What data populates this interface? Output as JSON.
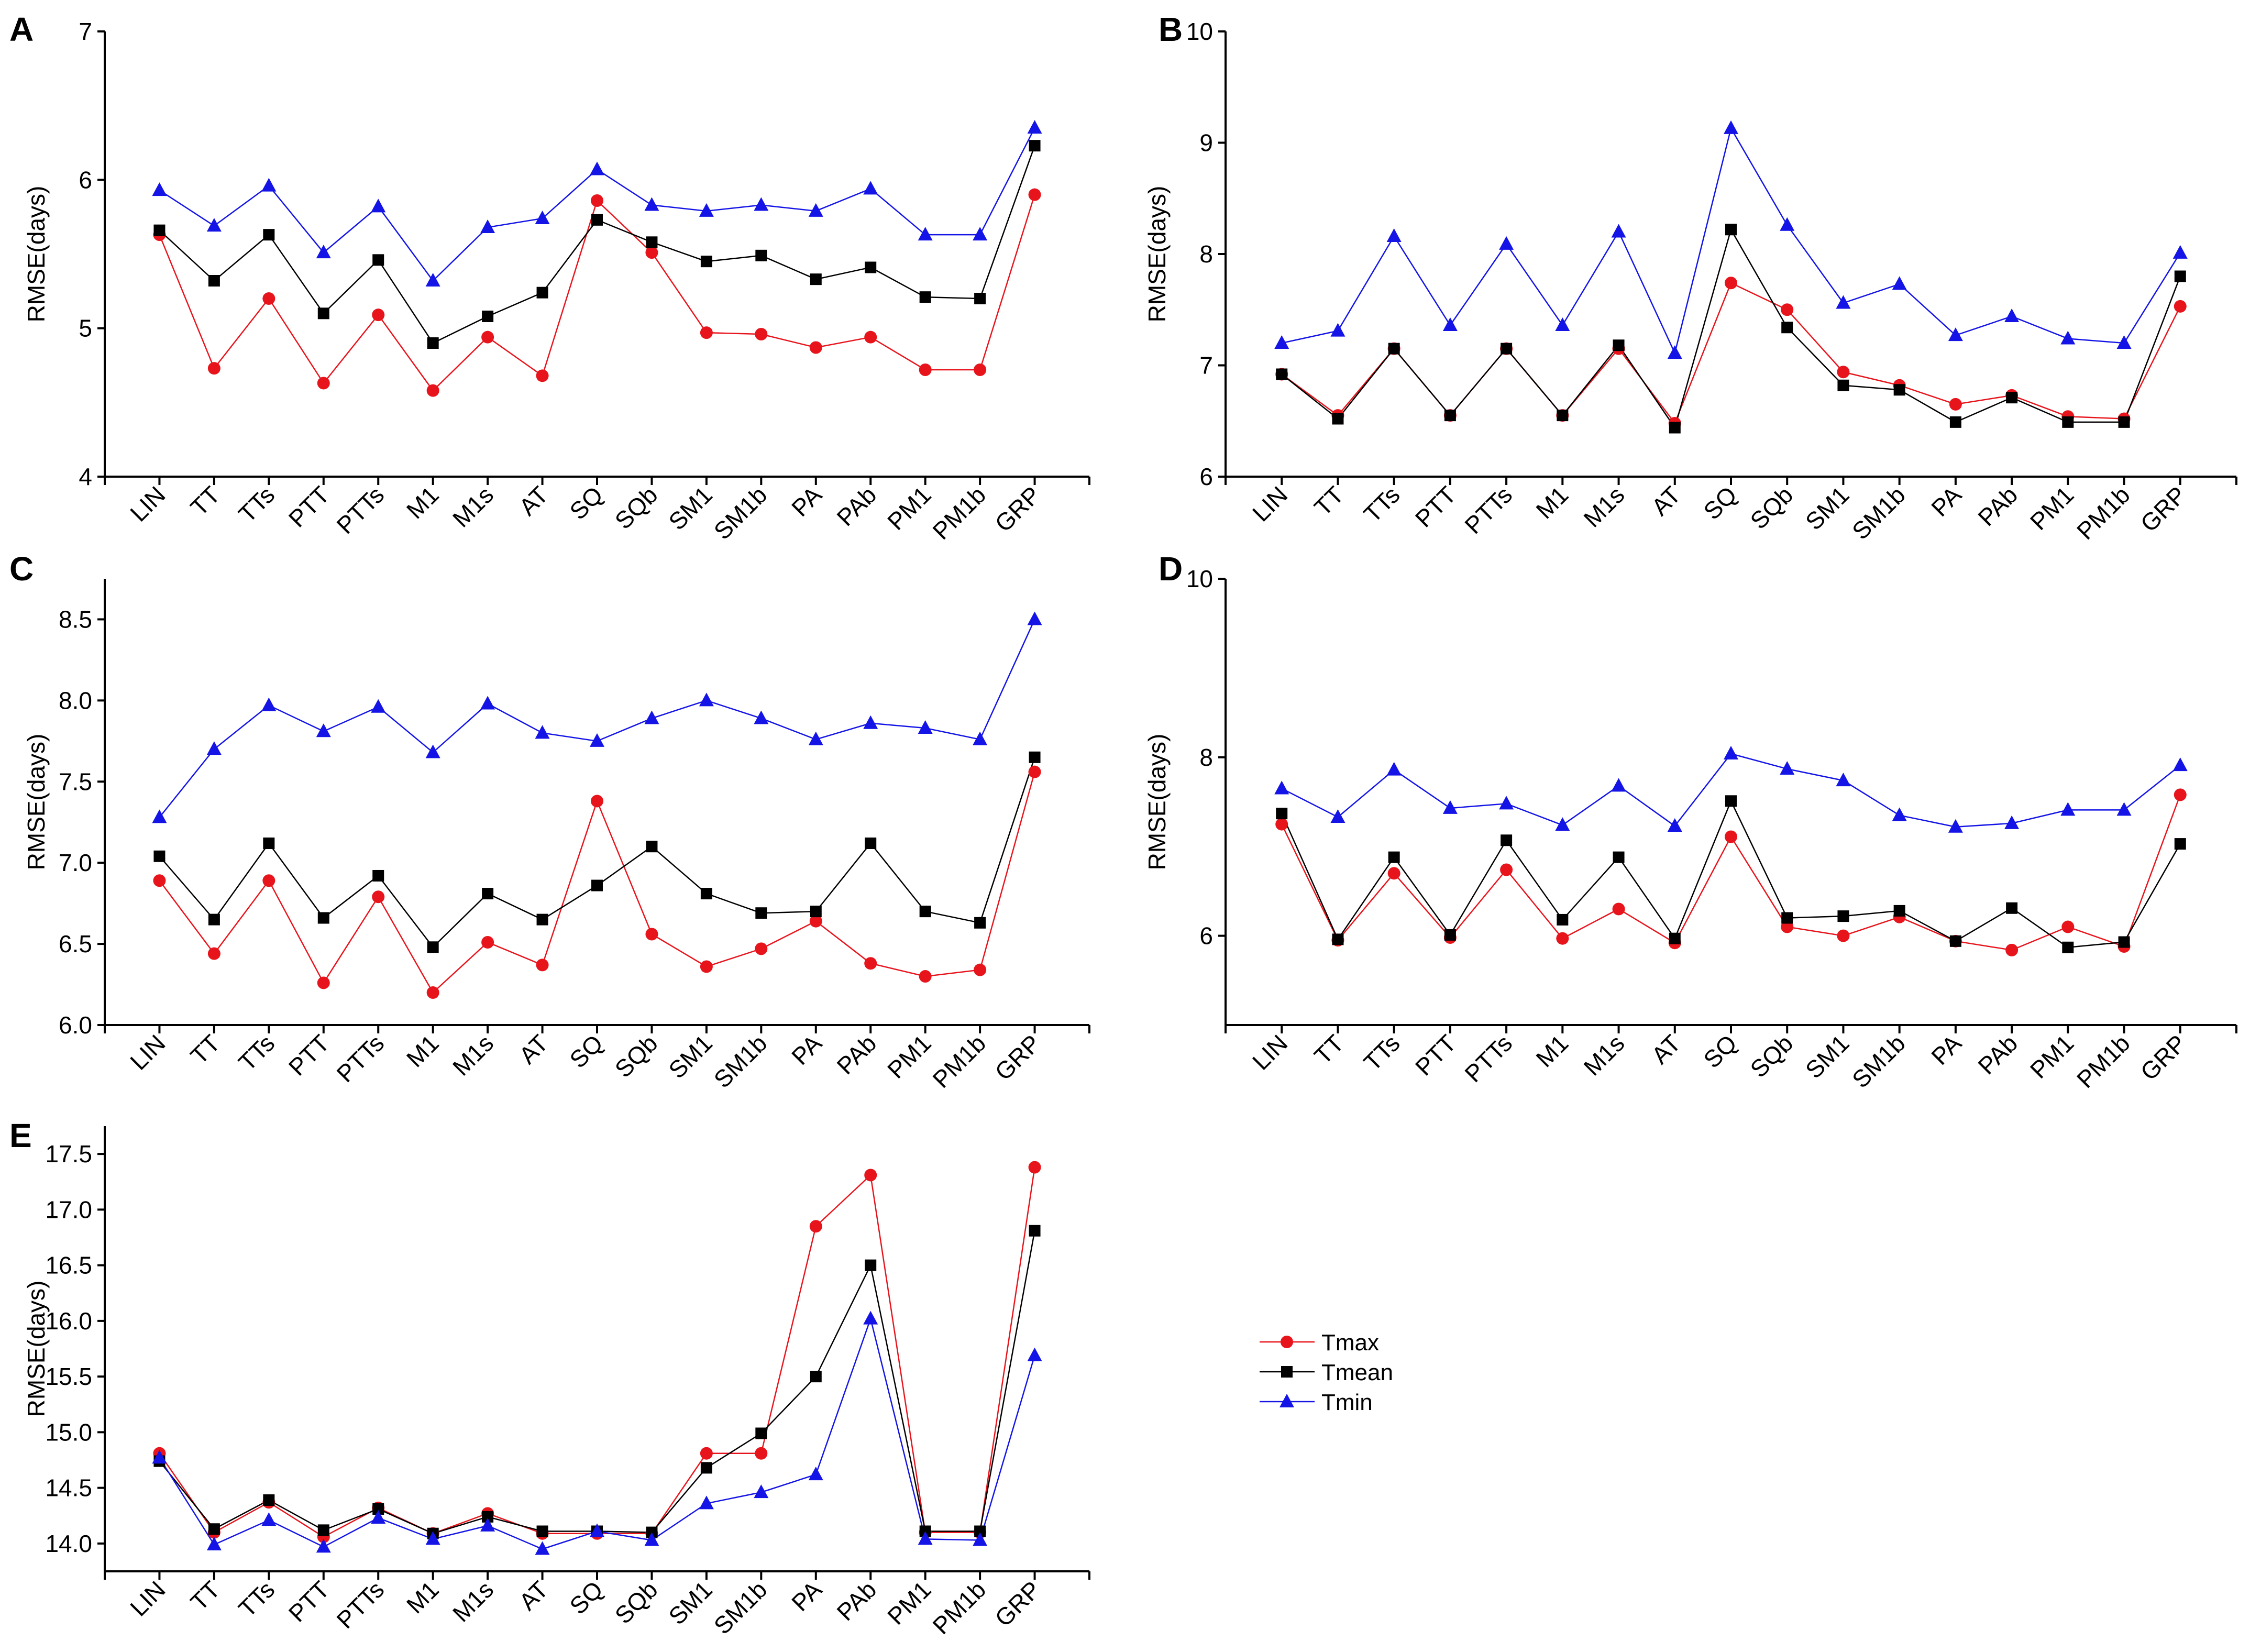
{
  "colors": {
    "tmax": "#e8141c",
    "tmean": "#000000",
    "tmin": "#1414e6",
    "axis": "#000000"
  },
  "legend": {
    "entries": [
      {
        "name": "Tmax",
        "marker": "circle",
        "color": "#e8141c"
      },
      {
        "name": "Tmean",
        "marker": "square",
        "color": "#000000"
      },
      {
        "name": "Tmin",
        "marker": "triangle",
        "color": "#1414e6"
      }
    ]
  },
  "chart_data": [
    {
      "panel": "A",
      "type": "line",
      "ylabel": "RMSE(days)",
      "ylim": [
        4,
        7
      ],
      "yticks": [
        "4",
        "5",
        "6",
        "7"
      ],
      "categories": [
        "LIN",
        "TT",
        "TTs",
        "PTT",
        "PTTs",
        "M1",
        "M1s",
        "AT",
        "SQ",
        "SQb",
        "SM1",
        "SM1b",
        "PA",
        "PAb",
        "PM1",
        "PM1b",
        "GRP"
      ],
      "series": [
        {
          "name": "Tmax",
          "values": [
            5.63,
            4.73,
            5.2,
            4.63,
            5.09,
            4.58,
            4.94,
            4.68,
            5.86,
            5.51,
            4.97,
            4.96,
            4.87,
            4.94,
            4.72,
            4.72,
            5.9
          ]
        },
        {
          "name": "Tmean",
          "values": [
            5.66,
            5.32,
            5.63,
            5.1,
            5.46,
            4.9,
            5.08,
            5.24,
            5.73,
            5.58,
            5.45,
            5.49,
            5.33,
            5.41,
            5.21,
            5.2,
            6.23
          ]
        },
        {
          "name": "Tmin",
          "values": [
            5.93,
            5.69,
            5.96,
            5.51,
            5.82,
            5.32,
            5.68,
            5.74,
            6.07,
            5.83,
            5.79,
            5.83,
            5.79,
            5.94,
            5.63,
            5.63,
            6.35
          ]
        }
      ]
    },
    {
      "panel": "B",
      "type": "line",
      "ylabel": "RMSE(days)",
      "ylim": [
        6,
        10
      ],
      "yticks": [
        "6",
        "7",
        "8",
        "9",
        "10"
      ],
      "categories": [
        "LIN",
        "TT",
        "TTs",
        "PTT",
        "PTTs",
        "M1",
        "M1s",
        "AT",
        "SQ",
        "SQb",
        "SM1",
        "SM1b",
        "PA",
        "PAb",
        "PM1",
        "PM1b",
        "GRP"
      ],
      "series": [
        {
          "name": "Tmax",
          "values": [
            6.92,
            6.55,
            7.15,
            6.55,
            7.15,
            6.55,
            7.15,
            6.48,
            7.74,
            7.5,
            6.94,
            6.82,
            6.65,
            6.73,
            6.54,
            6.52,
            7.53
          ]
        },
        {
          "name": "Tmean",
          "values": [
            6.92,
            6.52,
            7.15,
            6.55,
            7.15,
            6.55,
            7.18,
            6.44,
            8.22,
            7.34,
            6.82,
            6.78,
            6.49,
            6.71,
            6.49,
            6.49,
            7.8
          ]
        },
        {
          "name": "Tmin",
          "values": [
            7.2,
            7.31,
            8.16,
            7.36,
            8.09,
            7.36,
            8.2,
            7.11,
            9.13,
            8.26,
            7.56,
            7.73,
            7.27,
            7.44,
            7.24,
            7.2,
            8.01
          ]
        }
      ]
    },
    {
      "panel": "C",
      "type": "line",
      "ylabel": "RMSE(days)",
      "ylim": [
        6.0,
        8.75
      ],
      "yticks": [
        "6.0",
        "6.5",
        "7.0",
        "7.5",
        "8.0",
        "8.5"
      ],
      "categories": [
        "LIN",
        "TT",
        "TTs",
        "PTT",
        "PTTs",
        "M1",
        "M1s",
        "AT",
        "SQ",
        "SQb",
        "SM1",
        "SM1b",
        "PA",
        "PAb",
        "PM1",
        "PM1b",
        "GRP"
      ],
      "series": [
        {
          "name": "Tmax",
          "values": [
            6.89,
            6.44,
            6.89,
            6.26,
            6.79,
            6.2,
            6.51,
            6.37,
            7.38,
            6.56,
            6.36,
            6.47,
            6.64,
            6.38,
            6.3,
            6.34,
            7.56
          ]
        },
        {
          "name": "Tmean",
          "values": [
            7.04,
            6.65,
            7.12,
            6.66,
            6.92,
            6.48,
            6.81,
            6.65,
            6.86,
            7.1,
            6.81,
            6.69,
            6.7,
            7.12,
            6.7,
            6.63,
            7.65
          ]
        },
        {
          "name": "Tmin",
          "values": [
            7.28,
            7.7,
            7.97,
            7.81,
            7.96,
            7.68,
            7.98,
            7.8,
            7.75,
            7.89,
            8.0,
            7.89,
            7.76,
            7.86,
            7.83,
            7.76,
            8.5
          ]
        }
      ]
    },
    {
      "panel": "D",
      "type": "line",
      "ylabel": "RMSE(days)",
      "ylim": [
        5,
        10
      ],
      "yticks": [
        "6",
        "8",
        "10"
      ],
      "categories": [
        "LIN",
        "TT",
        "TTs",
        "PTT",
        "PTTs",
        "M1",
        "M1s",
        "AT",
        "SQ",
        "SQb",
        "SM1",
        "SM1b",
        "PA",
        "PAb",
        "PM1",
        "PM1b",
        "GRP"
      ],
      "series": [
        {
          "name": "Tmax",
          "values": [
            7.25,
            5.95,
            6.7,
            5.98,
            6.74,
            5.97,
            6.3,
            5.92,
            7.11,
            6.1,
            6.0,
            6.21,
            5.94,
            5.84,
            6.1,
            5.88,
            7.58
          ]
        },
        {
          "name": "Tmean",
          "values": [
            7.37,
            5.96,
            6.88,
            6.01,
            7.07,
            6.18,
            6.88,
            5.97,
            7.51,
            6.2,
            6.22,
            6.28,
            5.94,
            6.31,
            5.87,
            5.93,
            7.03
          ]
        },
        {
          "name": "Tmin",
          "values": [
            7.65,
            7.33,
            7.86,
            7.43,
            7.48,
            7.24,
            7.68,
            7.23,
            8.04,
            7.87,
            7.74,
            7.35,
            7.22,
            7.26,
            7.41,
            7.41,
            7.91
          ]
        }
      ]
    },
    {
      "panel": "E",
      "type": "line",
      "ylabel": "RMSE(days)",
      "ylim": [
        13.75,
        17.75
      ],
      "yticks": [
        "14.0",
        "14.5",
        "15.0",
        "15.5",
        "16.0",
        "16.5",
        "17.0",
        "17.5"
      ],
      "categories": [
        "LIN",
        "TT",
        "TTs",
        "PTT",
        "PTTs",
        "M1",
        "M1s",
        "AT",
        "SQ",
        "SQb",
        "SM1",
        "SM1b",
        "PA",
        "PAb",
        "PM1",
        "PM1b",
        "GRP"
      ],
      "series": [
        {
          "name": "Tmax",
          "values": [
            14.81,
            14.1,
            14.37,
            14.06,
            14.32,
            14.09,
            14.27,
            14.09,
            14.09,
            14.09,
            14.81,
            14.81,
            16.85,
            17.31,
            14.1,
            14.1,
            17.38
          ]
        },
        {
          "name": "Tmean",
          "values": [
            14.74,
            14.13,
            14.39,
            14.12,
            14.31,
            14.09,
            14.24,
            14.11,
            14.11,
            14.1,
            14.68,
            14.99,
            15.5,
            16.5,
            14.11,
            14.11,
            16.81
          ]
        },
        {
          "name": "Tmin",
          "values": [
            14.77,
            13.99,
            14.21,
            13.97,
            14.23,
            14.04,
            14.16,
            13.95,
            14.11,
            14.03,
            14.36,
            14.46,
            14.62,
            16.02,
            14.04,
            14.03,
            15.69
          ]
        }
      ]
    }
  ]
}
